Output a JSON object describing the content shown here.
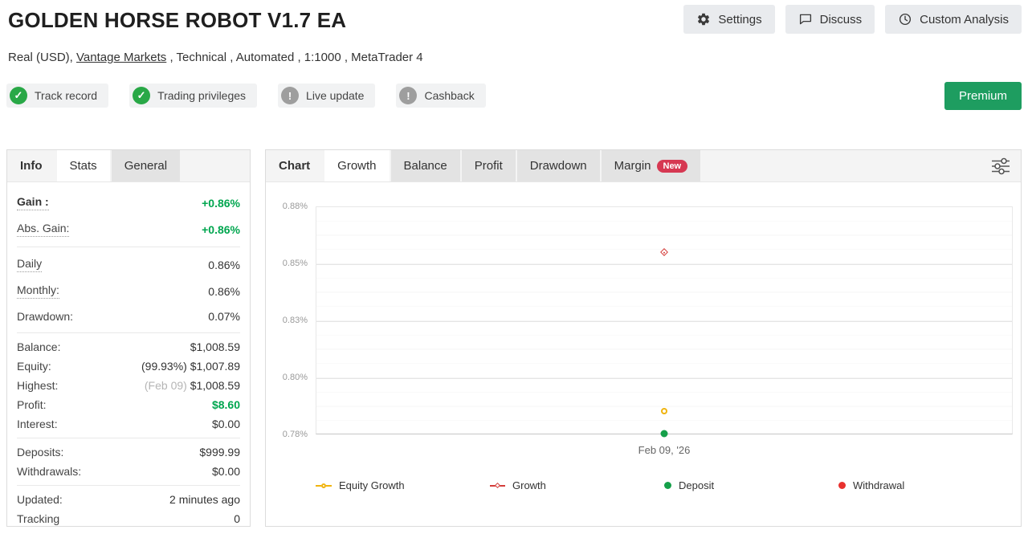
{
  "header": {
    "title": "GOLDEN HORSE ROBOT V1.7 EA",
    "buttons": [
      {
        "label": "Settings",
        "icon": "gear-icon"
      },
      {
        "label": "Discuss",
        "icon": "discuss-icon"
      },
      {
        "label": "Custom Analysis",
        "icon": "clock-icon"
      }
    ],
    "subtitle": {
      "prefix": "Real (USD), ",
      "link": "Vantage Markets",
      "suffix": " , Technical , Automated , 1:1000 , MetaTrader 4"
    }
  },
  "badges": [
    {
      "label": "Track record",
      "status": "ok"
    },
    {
      "label": "Trading privileges",
      "status": "ok"
    },
    {
      "label": "Live update",
      "status": "warn"
    },
    {
      "label": "Cashback",
      "status": "warn"
    }
  ],
  "premium_label": "Premium",
  "icons": {
    "ok": "✓",
    "warn": "!"
  },
  "colors": {
    "gain_green": "#00a64f",
    "badge_ok_green": "#29a847",
    "badge_warn_gray": "#9e9e9e",
    "premium_green": "#1e9d60",
    "new_badge_red": "#d63852"
  },
  "info_panel": {
    "tabs": [
      {
        "label": "Info"
      },
      {
        "label": "Stats"
      },
      {
        "label": "General"
      }
    ],
    "groups": [
      {
        "rows": [
          {
            "label": "Gain :",
            "value": "+0.86%",
            "green": true,
            "bold_value": true,
            "bold_label": true,
            "dotted": true
          },
          {
            "label": "Abs. Gain:",
            "value": "+0.86%",
            "green": true,
            "bold_value": true,
            "dotted": true
          }
        ]
      },
      {
        "rows": [
          {
            "label": "Daily",
            "value": "0.86%",
            "dotted": true
          },
          {
            "label": "Monthly:",
            "value": "0.86%",
            "dotted": true
          },
          {
            "label": "Drawdown:",
            "value": "0.07%"
          }
        ]
      },
      {
        "rows": [
          {
            "label": "Balance:",
            "value": "$1,008.59"
          },
          {
            "label": "Equity:",
            "value": "$1,007.89",
            "prefix": "(99.93%) "
          },
          {
            "label": "Highest:",
            "value": "$1,008.59",
            "prefix_muted": "(Feb 09) "
          },
          {
            "label": "Profit:",
            "value": "$8.60",
            "green": true,
            "bold_value": true
          },
          {
            "label": "Interest:",
            "value": "$0.00"
          }
        ]
      },
      {
        "rows": [
          {
            "label": "Deposits:",
            "value": "$999.99"
          },
          {
            "label": "Withdrawals:",
            "value": "$0.00"
          }
        ]
      },
      {
        "rows": [
          {
            "label": "Updated:",
            "value": "2 minutes ago"
          },
          {
            "label": "Tracking",
            "value": "0"
          }
        ]
      }
    ]
  },
  "chart_panel": {
    "tabs": [
      {
        "label": "Chart"
      },
      {
        "label": "Growth"
      },
      {
        "label": "Balance"
      },
      {
        "label": "Profit"
      },
      {
        "label": "Drawdown"
      },
      {
        "label": "Margin",
        "badge": "New"
      }
    ]
  },
  "chart_data": {
    "type": "scatter",
    "title": "Growth",
    "x_categories": [
      "Feb 09, '26"
    ],
    "yticks": [
      "0.88%",
      "0.85%",
      "0.83%",
      "0.80%",
      "0.78%"
    ],
    "ylim": [
      0.78,
      0.88
    ],
    "y_unit": "%",
    "grid": true,
    "legend_position": "bottom",
    "series": [
      {
        "name": "Equity Growth",
        "marker": "circle",
        "color": "#f0b40f",
        "values": [
          0.79
        ]
      },
      {
        "name": "Growth",
        "marker": "diamond",
        "color": "#d43d3a",
        "values": [
          0.86
        ]
      },
      {
        "name": "Deposit",
        "marker": "dot",
        "color": "#15a04a",
        "values": [
          0.78
        ]
      },
      {
        "name": "Withdrawal",
        "marker": "dot",
        "color": "#e8312e",
        "values": []
      }
    ]
  }
}
